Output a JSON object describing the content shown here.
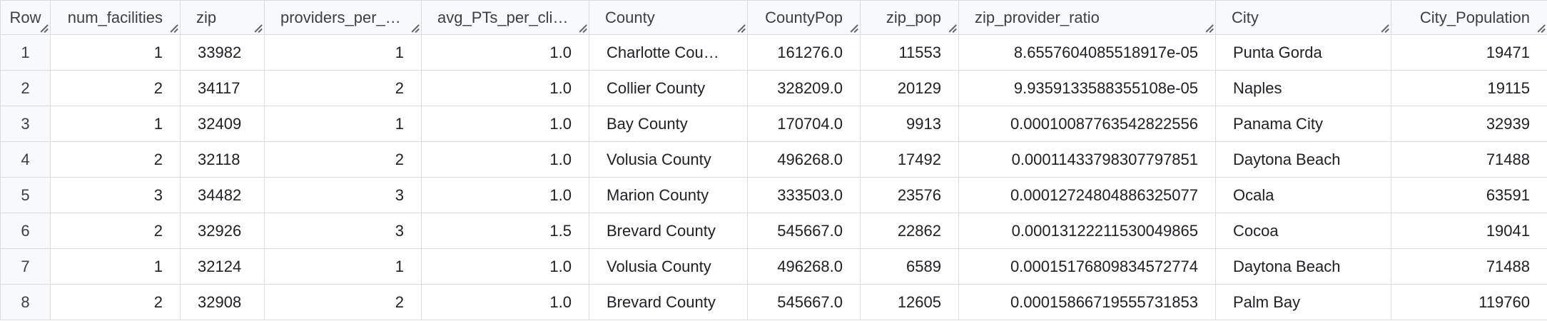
{
  "columns": [
    {
      "key": "row",
      "label": "Row"
    },
    {
      "key": "num_facilities",
      "label": "num_facilities"
    },
    {
      "key": "zip",
      "label": "zip"
    },
    {
      "key": "providers_per_zip",
      "label": "providers_per_zip"
    },
    {
      "key": "avg_PTs_per_clinic",
      "label": "avg_PTs_per_clinic"
    },
    {
      "key": "County",
      "label": "County"
    },
    {
      "key": "CountyPop",
      "label": "CountyPop"
    },
    {
      "key": "zip_pop",
      "label": "zip_pop"
    },
    {
      "key": "zip_provider_ratio",
      "label": "zip_provider_ratio"
    },
    {
      "key": "City",
      "label": "City"
    },
    {
      "key": "City_Population",
      "label": "City_Population"
    }
  ],
  "rows": [
    {
      "row": "1",
      "num_facilities": "1",
      "zip": "33982",
      "providers_per_zip": "1",
      "avg_PTs_per_clinic": "1.0",
      "County": "Charlotte Cou…",
      "CountyPop": "161276.0",
      "zip_pop": "11553",
      "zip_provider_ratio": "8.6557604085518917e-05",
      "City": "Punta Gorda",
      "City_Population": "19471"
    },
    {
      "row": "2",
      "num_facilities": "2",
      "zip": "34117",
      "providers_per_zip": "2",
      "avg_PTs_per_clinic": "1.0",
      "County": "Collier County",
      "CountyPop": "328209.0",
      "zip_pop": "20129",
      "zip_provider_ratio": "9.9359133588355108e-05",
      "City": "Naples",
      "City_Population": "19115"
    },
    {
      "row": "3",
      "num_facilities": "1",
      "zip": "32409",
      "providers_per_zip": "1",
      "avg_PTs_per_clinic": "1.0",
      "County": "Bay County",
      "CountyPop": "170704.0",
      "zip_pop": "9913",
      "zip_provider_ratio": "0.00010087763542822556",
      "City": "Panama City",
      "City_Population": "32939"
    },
    {
      "row": "4",
      "num_facilities": "2",
      "zip": "32118",
      "providers_per_zip": "2",
      "avg_PTs_per_clinic": "1.0",
      "County": "Volusia County",
      "CountyPop": "496268.0",
      "zip_pop": "17492",
      "zip_provider_ratio": "0.00011433798307797851",
      "City": "Daytona Beach",
      "City_Population": "71488"
    },
    {
      "row": "5",
      "num_facilities": "3",
      "zip": "34482",
      "providers_per_zip": "3",
      "avg_PTs_per_clinic": "1.0",
      "County": "Marion County",
      "CountyPop": "333503.0",
      "zip_pop": "23576",
      "zip_provider_ratio": "0.00012724804886325077",
      "City": "Ocala",
      "City_Population": "63591"
    },
    {
      "row": "6",
      "num_facilities": "2",
      "zip": "32926",
      "providers_per_zip": "3",
      "avg_PTs_per_clinic": "1.5",
      "County": "Brevard County",
      "CountyPop": "545667.0",
      "zip_pop": "22862",
      "zip_provider_ratio": "0.00013122211530049865",
      "City": "Cocoa",
      "City_Population": "19041"
    },
    {
      "row": "7",
      "num_facilities": "1",
      "zip": "32124",
      "providers_per_zip": "1",
      "avg_PTs_per_clinic": "1.0",
      "County": "Volusia County",
      "CountyPop": "496268.0",
      "zip_pop": "6589",
      "zip_provider_ratio": "0.00015176809834572774",
      "City": "Daytona Beach",
      "City_Population": "71488"
    },
    {
      "row": "8",
      "num_facilities": "2",
      "zip": "32908",
      "providers_per_zip": "2",
      "avg_PTs_per_clinic": "1.0",
      "County": "Brevard County",
      "CountyPop": "545667.0",
      "zip_pop": "12605",
      "zip_provider_ratio": "0.00015866719555731853",
      "City": "Palm Bay",
      "City_Population": "119760"
    }
  ]
}
